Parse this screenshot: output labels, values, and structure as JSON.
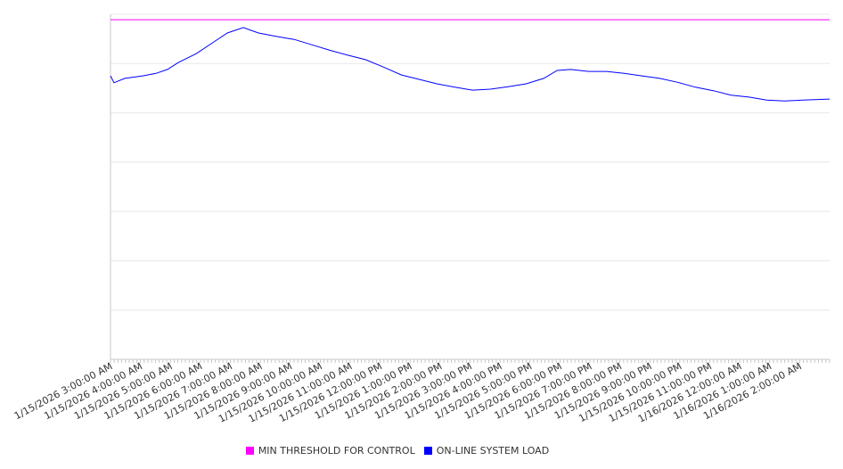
{
  "chart_data": {
    "type": "line",
    "title": "",
    "xlabel": "",
    "ylabel": "",
    "x_unit": "hours since 1/15/2026 3:00:00 AM",
    "xlim": [
      0,
      24
    ],
    "ylim": [
      0,
      7
    ],
    "y_gridlines": 7,
    "y_tick_labels_shown": false,
    "grid": true,
    "legend_position": "bottom",
    "x_tick_labels": [
      "1/15/2026 3:00:00 AM",
      "1/15/2026 4:00:00 AM",
      "1/15/2026 5:00:00 AM",
      "1/15/2026 6:00:00 AM",
      "1/15/2026 7:00:00 AM",
      "1/15/2026 8:00:00 AM",
      "1/15/2026 9:00:00 AM",
      "1/15/2026 10:00:00 AM",
      "1/15/2026 11:00:00 AM",
      "1/15/2026 12:00:00 PM",
      "1/15/2026 1:00:00 PM",
      "1/15/2026 2:00:00 PM",
      "1/15/2026 3:00:00 PM",
      "1/15/2026 4:00:00 PM",
      "1/15/2026 5:00:00 PM",
      "1/15/2026 6:00:00 PM",
      "1/15/2026 7:00:00 PM",
      "1/15/2026 8:00:00 PM",
      "1/15/2026 9:00:00 PM",
      "1/15/2026 10:00:00 PM",
      "1/15/2026 11:00:00 PM",
      "1/16/2026 12:00:00 AM",
      "1/16/2026 1:00:00 AM",
      "1/16/2026 2:00:00 AM"
    ],
    "series": [
      {
        "name": "MIN THRESHOLD FOR CONTROL",
        "color": "#ff00ff",
        "x": [
          0,
          24
        ],
        "values": [
          6.89,
          6.89
        ]
      },
      {
        "name": "ON-LINE SYSTEM LOAD",
        "color": "#0000ff",
        "x": [
          0,
          0.12,
          0.48,
          1.07,
          1.52,
          1.9,
          2.26,
          2.86,
          3.45,
          3.9,
          4.43,
          4.94,
          5.54,
          6.13,
          6.73,
          7.32,
          7.92,
          8.51,
          9.11,
          9.7,
          10.3,
          10.89,
          11.49,
          12.08,
          12.68,
          13.27,
          13.87,
          14.46,
          14.91,
          15.36,
          15.95,
          16.55,
          17.14,
          17.74,
          18.33,
          18.93,
          19.52,
          20.12,
          20.71,
          21.31,
          21.9,
          22.5,
          23.1,
          24
        ],
        "values": [
          5.75,
          5.61,
          5.7,
          5.75,
          5.8,
          5.88,
          6.02,
          6.2,
          6.44,
          6.62,
          6.73,
          6.62,
          6.55,
          6.49,
          6.38,
          6.27,
          6.17,
          6.08,
          5.93,
          5.77,
          5.68,
          5.59,
          5.52,
          5.46,
          5.48,
          5.53,
          5.59,
          5.7,
          5.86,
          5.88,
          5.84,
          5.84,
          5.8,
          5.75,
          5.7,
          5.62,
          5.52,
          5.45,
          5.36,
          5.32,
          5.26,
          5.24,
          5.26,
          5.28
        ]
      }
    ]
  }
}
